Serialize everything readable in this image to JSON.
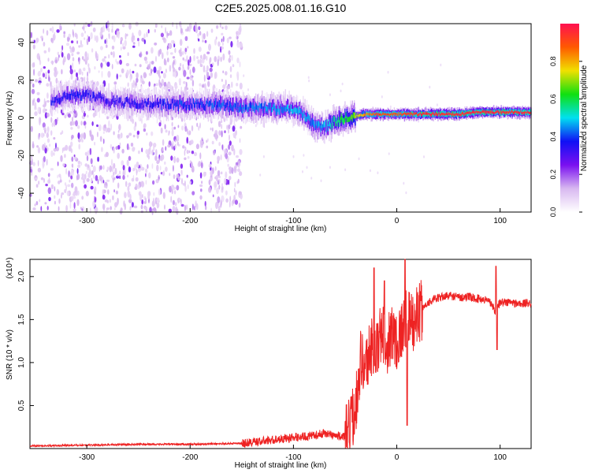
{
  "figure_title": "C2E5.2025.008.01.16.G10",
  "chart_data": [
    {
      "type": "heatmap",
      "title": "C2E5.2025.008.01.16.G10",
      "xlabel": "Height of straight line (km)",
      "ylabel": "Frequency (Hz)",
      "xlim": [
        -355,
        130
      ],
      "ylim": [
        -50,
        50
      ],
      "xticks": [
        -300,
        -200,
        -100,
        0,
        100
      ],
      "yticks": [
        -40,
        -20,
        0,
        20,
        40
      ],
      "colorbar": {
        "label": "Normalized spectral amplitude",
        "range": [
          0,
          1
        ],
        "ticks": [
          0.0,
          0.2,
          0.4,
          0.6,
          0.8
        ],
        "colors": [
          "#ffffff",
          "#d8b8f0",
          "#7a10f0",
          "#1010f5",
          "#00e0f0",
          "#10e010",
          "#f0e000",
          "#ff5a00",
          "#ff1050"
        ]
      },
      "ridge": {
        "x": [
          -335,
          -320,
          -300,
          -280,
          -260,
          -240,
          -220,
          -200,
          -180,
          -160,
          -140,
          -120,
          -100,
          -90,
          -80,
          -70,
          -60,
          -50,
          -40,
          -30,
          -20,
          -10,
          0,
          20,
          40,
          60,
          80,
          100,
          120,
          130
        ],
        "frequency": [
          9,
          12,
          12,
          9,
          8,
          7,
          7,
          7,
          7,
          6,
          5,
          5,
          5,
          2,
          -4,
          -5,
          -2,
          0,
          1,
          2,
          2,
          2,
          2,
          2,
          2,
          2,
          3,
          3,
          3,
          3
        ],
        "peak_amplitude": [
          0.35,
          0.35,
          0.35,
          0.32,
          0.33,
          0.35,
          0.38,
          0.38,
          0.4,
          0.42,
          0.42,
          0.45,
          0.47,
          0.45,
          0.45,
          0.47,
          0.55,
          0.6,
          0.7,
          0.85,
          0.9,
          0.9,
          0.88,
          0.95,
          0.95,
          0.95,
          0.95,
          0.95,
          0.95,
          0.95
        ]
      },
      "noise_extent_x": [
        -355,
        -150
      ]
    },
    {
      "type": "line",
      "title": "",
      "xlabel": "Height of straight line (km)",
      "ylabel": "SNR (10 * v/v)",
      "multiplier": "(x10⁴)",
      "xlim": [
        -355,
        130
      ],
      "ylim": [
        0,
        2.2
      ],
      "xticks": [
        -300,
        -200,
        -100,
        0,
        100
      ],
      "yticks": [
        0.5,
        1.0,
        1.5,
        2.0
      ],
      "ytick_labels": [
        "0.5",
        "1.0",
        "1.5",
        "2.0"
      ],
      "series": [
        {
          "color": "#ee2222",
          "x": [
            -355,
            -300,
            -250,
            -200,
            -150,
            -120,
            -100,
            -80,
            -70,
            -60,
            -50,
            -45,
            -40,
            -35,
            -30,
            -25,
            -20,
            -15,
            -10,
            -5,
            0,
            5,
            10,
            15,
            20,
            30,
            40,
            50,
            60,
            70,
            80,
            90,
            95,
            100,
            110,
            120,
            130
          ],
          "y": [
            0.03,
            0.04,
            0.05,
            0.05,
            0.06,
            0.1,
            0.13,
            0.15,
            0.18,
            0.15,
            0.14,
            0.25,
            0.5,
            1.05,
            0.95,
            1.2,
            1.1,
            1.35,
            1.2,
            1.35,
            1.25,
            1.4,
            1.5,
            1.45,
            1.55,
            1.7,
            1.75,
            1.78,
            1.76,
            1.76,
            1.74,
            1.72,
            1.6,
            1.7,
            1.7,
            1.68,
            1.7
          ]
        }
      ],
      "spikes": [
        {
          "x": -22,
          "y": 2.1
        },
        {
          "x": -12,
          "y": 1.95
        },
        {
          "x": 8,
          "y": 2.3
        },
        {
          "x": 10,
          "y": 0.27
        },
        {
          "x": 96,
          "y": 2.12
        },
        {
          "x": 97,
          "y": 1.15
        }
      ]
    }
  ]
}
